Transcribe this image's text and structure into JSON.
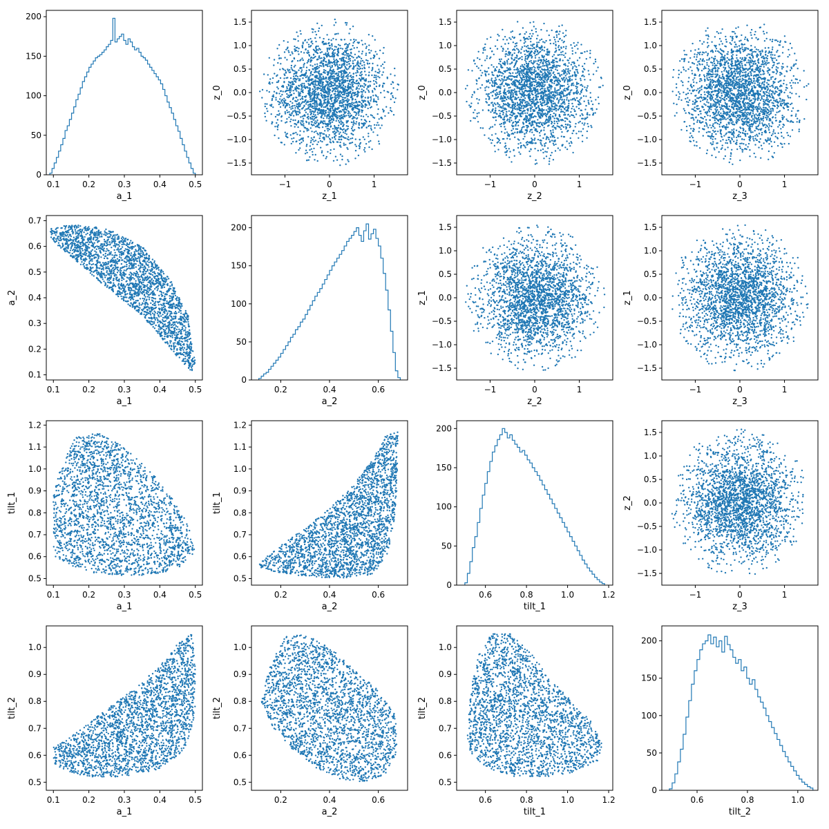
{
  "figure": {
    "background": "#ffffff",
    "marker_color": "#1f77b4"
  },
  "chart_data": [
    {
      "type": "histogram",
      "xlabel": "a_1",
      "ylabel": "",
      "xlim": [
        0.08,
        0.52
      ],
      "ylim": [
        0,
        208
      ],
      "xticks": [
        0.1,
        0.2,
        0.3,
        0.4,
        0.5
      ],
      "yticks": [
        0,
        50,
        100,
        150,
        200
      ],
      "xtick_labels": [
        "0.1",
        "0.2",
        "0.3",
        "0.4",
        "0.5"
      ],
      "ytick_labels": [
        "0",
        "50",
        "100",
        "150",
        "200"
      ],
      "bins": {
        "min": 0.09,
        "max": 0.5,
        "counts": [
          2,
          8,
          15,
          22,
          30,
          38,
          46,
          56,
          62,
          70,
          78,
          86,
          95,
          102,
          110,
          118,
          124,
          130,
          136,
          140,
          144,
          148,
          150,
          152,
          155,
          158,
          162,
          165,
          170,
          198,
          168,
          172,
          175,
          178,
          170,
          165,
          172,
          168,
          162,
          158,
          160,
          155,
          150,
          148,
          145,
          140,
          136,
          132,
          128,
          124,
          120,
          115,
          108,
          100,
          92,
          85,
          78,
          70,
          62,
          55,
          46,
          38,
          30,
          22,
          15,
          8,
          2
        ]
      }
    },
    {
      "type": "scatter",
      "xlabel": "z_1",
      "ylabel": "z_0",
      "xlim": [
        -1.75,
        1.75
      ],
      "ylim": [
        -1.75,
        1.75
      ],
      "xticks": [
        -1,
        0,
        1
      ],
      "yticks": [
        -1.5,
        -1.0,
        -0.5,
        0.0,
        0.5,
        1.0,
        1.5
      ],
      "xtick_labels": [
        "−1",
        "0",
        "1"
      ],
      "ytick_labels": [
        "−1.5",
        "−1.0",
        "−0.5",
        "0.0",
        "0.5",
        "1.0",
        "1.5"
      ],
      "shape": "disk",
      "center": [
        0,
        0
      ],
      "radius": 1.57,
      "points": 2400
    },
    {
      "type": "scatter",
      "xlabel": "z_2",
      "ylabel": "z_0",
      "xlim": [
        -1.75,
        1.75
      ],
      "ylim": [
        -1.75,
        1.75
      ],
      "xticks": [
        -1,
        0,
        1
      ],
      "yticks": [
        -1.5,
        -1.0,
        -0.5,
        0.0,
        0.5,
        1.0,
        1.5
      ],
      "xtick_labels": [
        "−1",
        "0",
        "1"
      ],
      "ytick_labels": [
        "−1.5",
        "−1.0",
        "−0.5",
        "0.0",
        "0.5",
        "1.0",
        "1.5"
      ],
      "shape": "disk",
      "center": [
        0,
        0
      ],
      "radius": 1.57,
      "points": 2400
    },
    {
      "type": "scatter",
      "xlabel": "z_3",
      "ylabel": "z_0",
      "xlim": [
        -1.75,
        1.75
      ],
      "ylim": [
        -1.75,
        1.75
      ],
      "xticks": [
        -1,
        0,
        1
      ],
      "yticks": [
        -1.5,
        -1.0,
        -0.5,
        0.0,
        0.5,
        1.0,
        1.5
      ],
      "xtick_labels": [
        "−1",
        "0",
        "1"
      ],
      "ytick_labels": [
        "−1.5",
        "−1.0",
        "−0.5",
        "0.0",
        "0.5",
        "1.0",
        "1.5"
      ],
      "shape": "disk",
      "center": [
        0,
        0
      ],
      "radius": 1.57,
      "points": 2400
    },
    {
      "type": "scatter",
      "xlabel": "a_1",
      "ylabel": "a_2",
      "xlim": [
        0.08,
        0.52
      ],
      "ylim": [
        0.08,
        0.72
      ],
      "xticks": [
        0.1,
        0.2,
        0.3,
        0.4,
        0.5
      ],
      "yticks": [
        0.1,
        0.2,
        0.3,
        0.4,
        0.5,
        0.6,
        0.7
      ],
      "xtick_labels": [
        "0.1",
        "0.2",
        "0.3",
        "0.4",
        "0.5"
      ],
      "ytick_labels": [
        "0.1",
        "0.2",
        "0.3",
        "0.4",
        "0.5",
        "0.6",
        "0.7"
      ],
      "shape": "polygon",
      "polygon": [
        [
          0.09,
          0.67
        ],
        [
          0.15,
          0.685
        ],
        [
          0.25,
          0.67
        ],
        [
          0.35,
          0.6
        ],
        [
          0.43,
          0.47
        ],
        [
          0.48,
          0.33
        ],
        [
          0.5,
          0.15
        ],
        [
          0.49,
          0.11
        ],
        [
          0.45,
          0.17
        ],
        [
          0.35,
          0.33
        ],
        [
          0.25,
          0.44
        ],
        [
          0.15,
          0.56
        ],
        [
          0.09,
          0.63
        ]
      ],
      "points": 2400
    },
    {
      "type": "histogram",
      "xlabel": "a_2",
      "ylabel": "",
      "xlim": [
        0.08,
        0.72
      ],
      "ylim": [
        0,
        216
      ],
      "xticks": [
        0.2,
        0.4,
        0.6
      ],
      "yticks": [
        0,
        50,
        100,
        150,
        200
      ],
      "xtick_labels": [
        "0.2",
        "0.4",
        "0.6"
      ],
      "ytick_labels": [
        "0",
        "50",
        "100",
        "150",
        "200"
      ],
      "bins": {
        "min": 0.11,
        "max": 0.69,
        "counts": [
          2,
          5,
          8,
          10,
          14,
          18,
          22,
          26,
          30,
          35,
          40,
          45,
          50,
          56,
          60,
          66,
          70,
          76,
          80,
          86,
          92,
          98,
          104,
          110,
          115,
          120,
          126,
          132,
          138,
          144,
          150,
          155,
          160,
          165,
          170,
          176,
          182,
          186,
          190,
          195,
          200,
          190,
          182,
          196,
          205,
          185,
          192,
          198,
          186,
          176,
          160,
          140,
          118,
          92,
          64,
          36,
          12,
          3
        ]
      }
    },
    {
      "type": "scatter",
      "xlabel": "z_2",
      "ylabel": "z_1",
      "xlim": [
        -1.75,
        1.75
      ],
      "ylim": [
        -1.75,
        1.75
      ],
      "xticks": [
        -1,
        0,
        1
      ],
      "yticks": [
        -1.5,
        -1.0,
        -0.5,
        0.0,
        0.5,
        1.0,
        1.5
      ],
      "xtick_labels": [
        "−1",
        "0",
        "1"
      ],
      "ytick_labels": [
        "−1.5",
        "−1.0",
        "−0.5",
        "0.0",
        "0.5",
        "1.0",
        "1.5"
      ],
      "shape": "disk",
      "center": [
        0,
        0
      ],
      "radius": 1.57,
      "points": 2400
    },
    {
      "type": "scatter",
      "xlabel": "z_3",
      "ylabel": "z_1",
      "xlim": [
        -1.75,
        1.75
      ],
      "ylim": [
        -1.75,
        1.75
      ],
      "xticks": [
        -1,
        0,
        1
      ],
      "yticks": [
        -1.5,
        -1.0,
        -0.5,
        0.0,
        0.5,
        1.0,
        1.5
      ],
      "xtick_labels": [
        "−1",
        "0",
        "1"
      ],
      "ytick_labels": [
        "−1.5",
        "−1.0",
        "−0.5",
        "0.0",
        "0.5",
        "1.0",
        "1.5"
      ],
      "shape": "disk",
      "center": [
        0,
        0
      ],
      "radius": 1.57,
      "points": 2400
    },
    {
      "type": "scatter",
      "xlabel": "a_1",
      "ylabel": "tilt_1",
      "xlim": [
        0.08,
        0.52
      ],
      "ylim": [
        0.47,
        1.22
      ],
      "xticks": [
        0.1,
        0.2,
        0.3,
        0.4,
        0.5
      ],
      "yticks": [
        0.5,
        0.6,
        0.7,
        0.8,
        0.9,
        1.0,
        1.1,
        1.2
      ],
      "xtick_labels": [
        "0.1",
        "0.2",
        "0.3",
        "0.4",
        "0.5"
      ],
      "ytick_labels": [
        "0.5",
        "0.6",
        "0.7",
        "0.8",
        "0.9",
        "1.0",
        "1.1",
        "1.2"
      ],
      "shape": "polygon",
      "polygon": [
        [
          0.1,
          0.6
        ],
        [
          0.1,
          0.88
        ],
        [
          0.12,
          1.0
        ],
        [
          0.16,
          1.14
        ],
        [
          0.22,
          1.17
        ],
        [
          0.3,
          1.1
        ],
        [
          0.38,
          0.98
        ],
        [
          0.44,
          0.86
        ],
        [
          0.48,
          0.75
        ],
        [
          0.5,
          0.63
        ],
        [
          0.47,
          0.56
        ],
        [
          0.4,
          0.52
        ],
        [
          0.3,
          0.51
        ],
        [
          0.2,
          0.53
        ],
        [
          0.13,
          0.57
        ]
      ],
      "points": 2400
    },
    {
      "type": "scatter",
      "xlabel": "a_2",
      "ylabel": "tilt_1",
      "xlim": [
        0.08,
        0.72
      ],
      "ylim": [
        0.47,
        1.22
      ],
      "xticks": [
        0.2,
        0.4,
        0.6
      ],
      "yticks": [
        0.5,
        0.6,
        0.7,
        0.8,
        0.9,
        1.0,
        1.1,
        1.2
      ],
      "xtick_labels": [
        "0.2",
        "0.4",
        "0.6"
      ],
      "ytick_labels": [
        "0.5",
        "0.6",
        "0.7",
        "0.8",
        "0.9",
        "1.0",
        "1.1",
        "1.2"
      ],
      "shape": "polygon",
      "polygon": [
        [
          0.11,
          0.57
        ],
        [
          0.2,
          0.65
        ],
        [
          0.3,
          0.73
        ],
        [
          0.4,
          0.82
        ],
        [
          0.5,
          0.93
        ],
        [
          0.58,
          1.05
        ],
        [
          0.63,
          1.15
        ],
        [
          0.68,
          1.17
        ],
        [
          0.68,
          1.0
        ],
        [
          0.67,
          0.8
        ],
        [
          0.64,
          0.62
        ],
        [
          0.58,
          0.52
        ],
        [
          0.45,
          0.5
        ],
        [
          0.3,
          0.51
        ],
        [
          0.18,
          0.53
        ],
        [
          0.12,
          0.55
        ]
      ],
      "points": 2400
    },
    {
      "type": "histogram",
      "xlabel": "tilt_1",
      "ylabel": "",
      "xlim": [
        0.46,
        1.22
      ],
      "ylim": [
        0,
        210
      ],
      "xticks": [
        0.6,
        0.8,
        1.0,
        1.2
      ],
      "yticks": [
        0,
        50,
        100,
        150,
        200
      ],
      "xtick_labels": [
        "0.6",
        "0.8",
        "1.0",
        "1.2"
      ],
      "ytick_labels": [
        "0",
        "50",
        "100",
        "150",
        "200"
      ],
      "bins": {
        "min": 0.5,
        "max": 1.18,
        "counts": [
          3,
          15,
          30,
          48,
          62,
          80,
          98,
          115,
          130,
          145,
          158,
          170,
          178,
          186,
          192,
          200,
          195,
          188,
          192,
          185,
          180,
          176,
          170,
          172,
          166,
          160,
          156,
          150,
          145,
          140,
          134,
          128,
          122,
          116,
          110,
          104,
          98,
          92,
          86,
          80,
          74,
          68,
          62,
          56,
          50,
          44,
          38,
          32,
          27,
          22,
          18,
          14,
          10,
          7,
          4,
          2
        ]
      }
    },
    {
      "type": "scatter",
      "xlabel": "z_3",
      "ylabel": "z_2",
      "xlim": [
        -1.75,
        1.75
      ],
      "ylim": [
        -1.75,
        1.75
      ],
      "xticks": [
        -1,
        0,
        1
      ],
      "yticks": [
        -1.5,
        -1.0,
        -0.5,
        0.0,
        0.5,
        1.0,
        1.5
      ],
      "xtick_labels": [
        "−1",
        "0",
        "1"
      ],
      "ytick_labels": [
        "−1.5",
        "−1.0",
        "−0.5",
        "0.0",
        "0.5",
        "1.0",
        "1.5"
      ],
      "shape": "disk",
      "center": [
        0,
        0
      ],
      "radius": 1.57,
      "points": 2400
    },
    {
      "type": "scatter",
      "xlabel": "a_1",
      "ylabel": "tilt_2",
      "xlim": [
        0.08,
        0.52
      ],
      "ylim": [
        0.47,
        1.08
      ],
      "xticks": [
        0.1,
        0.2,
        0.3,
        0.4,
        0.5
      ],
      "yticks": [
        0.5,
        0.6,
        0.7,
        0.8,
        0.9,
        1.0
      ],
      "xtick_labels": [
        "0.1",
        "0.2",
        "0.3",
        "0.4",
        "0.5"
      ],
      "ytick_labels": [
        "0.5",
        "0.6",
        "0.7",
        "0.8",
        "0.9",
        "1.0"
      ],
      "shape": "polygon",
      "polygon": [
        [
          0.1,
          0.57
        ],
        [
          0.1,
          0.63
        ],
        [
          0.15,
          0.67
        ],
        [
          0.2,
          0.72
        ],
        [
          0.28,
          0.8
        ],
        [
          0.35,
          0.87
        ],
        [
          0.42,
          0.96
        ],
        [
          0.46,
          1.03
        ],
        [
          0.49,
          1.05
        ],
        [
          0.5,
          0.95
        ],
        [
          0.5,
          0.75
        ],
        [
          0.47,
          0.62
        ],
        [
          0.4,
          0.55
        ],
        [
          0.3,
          0.52
        ],
        [
          0.2,
          0.52
        ],
        [
          0.14,
          0.54
        ]
      ],
      "points": 2400
    },
    {
      "type": "scatter",
      "xlabel": "a_2",
      "ylabel": "tilt_2",
      "xlim": [
        0.08,
        0.72
      ],
      "ylim": [
        0.47,
        1.08
      ],
      "xticks": [
        0.2,
        0.4,
        0.6
      ],
      "yticks": [
        0.5,
        0.6,
        0.7,
        0.8,
        0.9,
        1.0
      ],
      "xtick_labels": [
        "0.2",
        "0.4",
        "0.6"
      ],
      "ytick_labels": [
        "0.5",
        "0.6",
        "0.7",
        "0.8",
        "0.9",
        "1.0"
      ],
      "shape": "polygon",
      "polygon": [
        [
          0.12,
          0.8
        ],
        [
          0.16,
          0.95
        ],
        [
          0.22,
          1.04
        ],
        [
          0.3,
          1.05
        ],
        [
          0.4,
          1.0
        ],
        [
          0.5,
          0.92
        ],
        [
          0.6,
          0.84
        ],
        [
          0.67,
          0.75
        ],
        [
          0.68,
          0.62
        ],
        [
          0.63,
          0.53
        ],
        [
          0.55,
          0.5
        ],
        [
          0.45,
          0.51
        ],
        [
          0.35,
          0.55
        ],
        [
          0.25,
          0.62
        ],
        [
          0.17,
          0.7
        ]
      ],
      "points": 2400
    },
    {
      "type": "scatter",
      "xlabel": "tilt_1",
      "ylabel": "tilt_2",
      "xlim": [
        0.46,
        1.22
      ],
      "ylim": [
        0.47,
        1.08
      ],
      "xticks": [
        0.6,
        0.8,
        1.0,
        1.2
      ],
      "yticks": [
        0.5,
        0.6,
        0.7,
        0.8,
        0.9,
        1.0
      ],
      "xtick_labels": [
        "0.6",
        "0.8",
        "1.0",
        "1.2"
      ],
      "ytick_labels": [
        "0.5",
        "0.6",
        "0.7",
        "0.8",
        "0.9",
        "1.0"
      ],
      "shape": "polygon",
      "polygon": [
        [
          0.51,
          0.65
        ],
        [
          0.53,
          0.85
        ],
        [
          0.57,
          0.98
        ],
        [
          0.63,
          1.05
        ],
        [
          0.72,
          1.05
        ],
        [
          0.82,
          0.98
        ],
        [
          0.92,
          0.88
        ],
        [
          1.02,
          0.8
        ],
        [
          1.12,
          0.72
        ],
        [
          1.17,
          0.64
        ],
        [
          1.15,
          0.58
        ],
        [
          1.05,
          0.54
        ],
        [
          0.9,
          0.52
        ],
        [
          0.75,
          0.52
        ],
        [
          0.62,
          0.55
        ],
        [
          0.54,
          0.59
        ]
      ],
      "points": 2400
    },
    {
      "type": "histogram",
      "xlabel": "tilt_2",
      "ylabel": "",
      "xlim": [
        0.46,
        1.08
      ],
      "ylim": [
        0,
        220
      ],
      "xticks": [
        0.6,
        0.8,
        1.0
      ],
      "yticks": [
        0,
        50,
        100,
        150,
        200
      ],
      "xtick_labels": [
        "0.6",
        "0.8",
        "1.0"
      ],
      "ytick_labels": [
        "0",
        "50",
        "100",
        "150",
        "200"
      ],
      "bins": {
        "min": 0.49,
        "max": 1.06,
        "counts": [
          2,
          10,
          22,
          38,
          55,
          75,
          98,
          120,
          142,
          160,
          175,
          188,
          196,
          200,
          208,
          196,
          205,
          192,
          200,
          185,
          206,
          195,
          188,
          178,
          170,
          175,
          160,
          165,
          150,
          142,
          148,
          135,
          125,
          118,
          110,
          100,
          92,
          84,
          76,
          68,
          60,
          52,
          45,
          38,
          32,
          26,
          20,
          15,
          11,
          8,
          5,
          3
        ]
      }
    }
  ]
}
